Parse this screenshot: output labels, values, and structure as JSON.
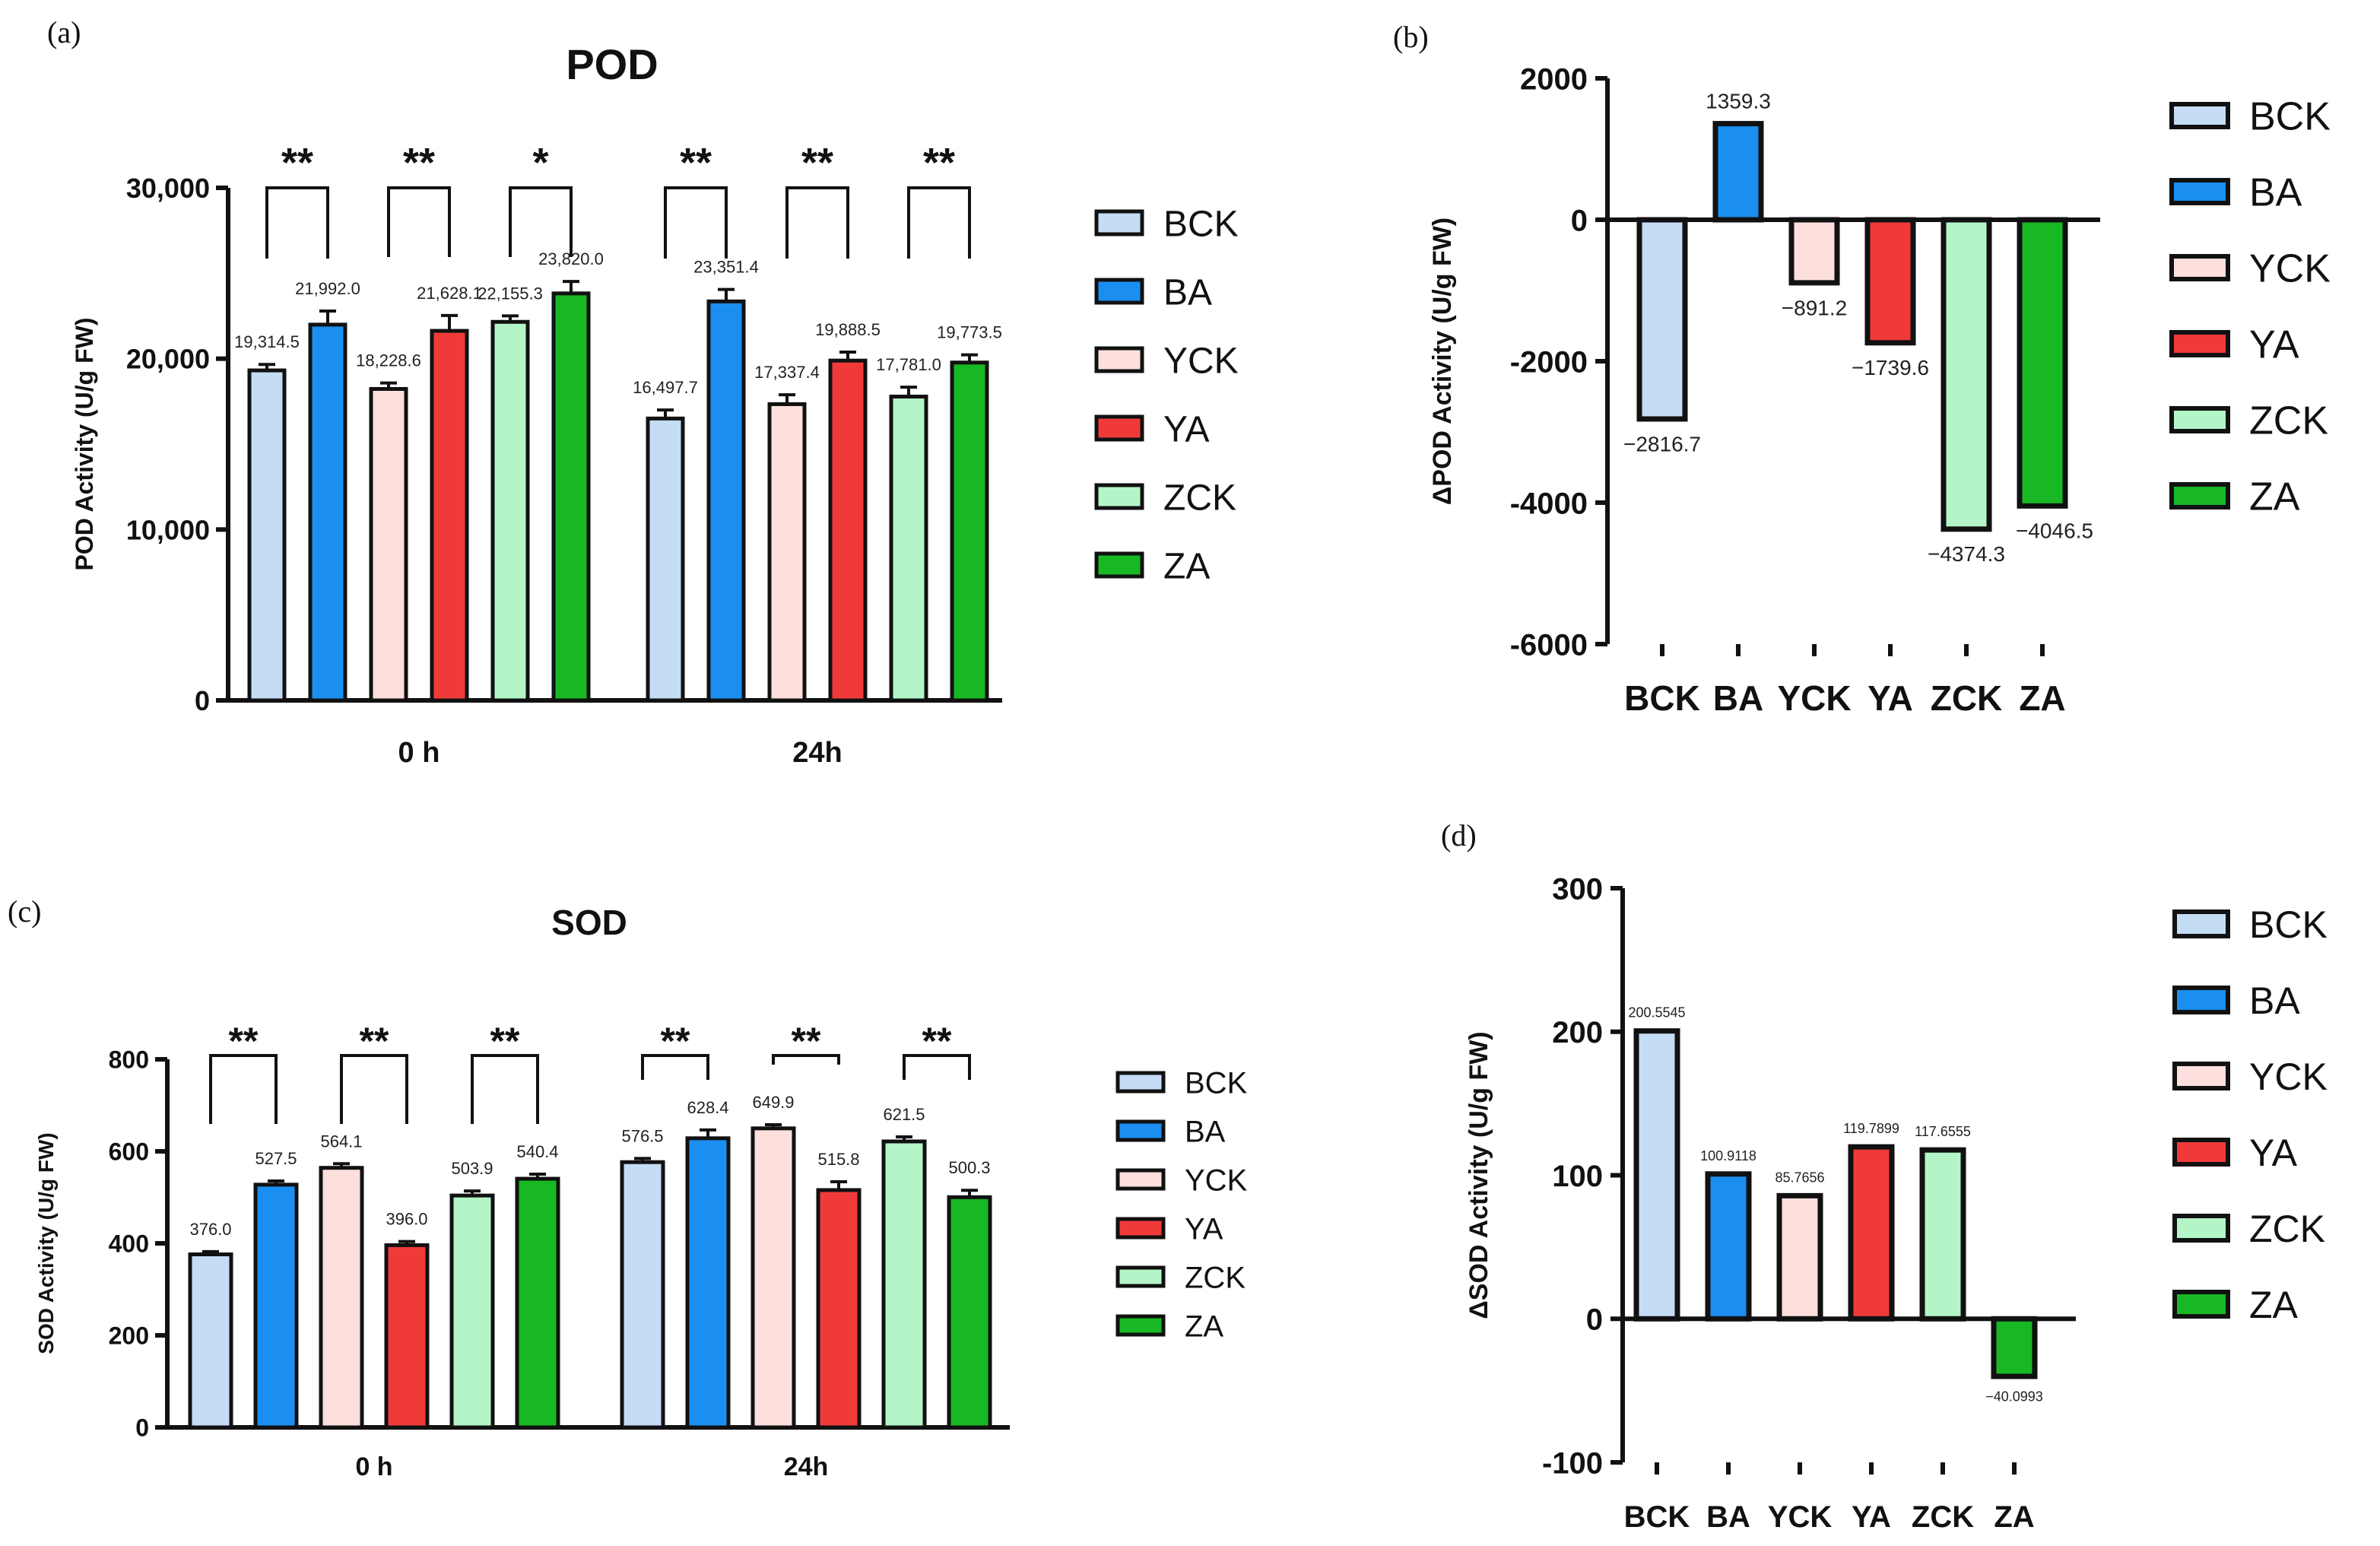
{
  "panels": {
    "a": "(a)",
    "b": "(b)",
    "c": "(c)",
    "d": "(d)"
  },
  "colors": {
    "BCK": "#c5dcf5",
    "BA": "#1a8ff0",
    "YCK": "#fde0dd",
    "YA": "#f03a3a",
    "ZCK": "#b4f5c8",
    "ZA": "#18b824"
  },
  "chart_data": [
    {
      "id": "a",
      "type": "bar",
      "title": "POD",
      "ylabel": "POD Activity (U/g FW)",
      "xlabel": "",
      "ylim": [
        0,
        30000
      ],
      "yticks": [
        0,
        10000,
        20000,
        30000
      ],
      "ytick_labels": [
        "0",
        "10,000",
        "20,000",
        "30,000"
      ],
      "groups": [
        "0 h",
        "24h"
      ],
      "series_names": [
        "BCK",
        "BA",
        "YCK",
        "YA",
        "ZCK",
        "ZA"
      ],
      "values": [
        [
          19314.5,
          21992.0,
          18228.6,
          21628.1,
          22155.3,
          23820.0
        ],
        [
          16497.7,
          23351.4,
          17337.4,
          19888.5,
          17781.0,
          19773.5
        ]
      ],
      "errors": [
        [
          350,
          800,
          350,
          900,
          350,
          700
        ],
        [
          500,
          700,
          550,
          500,
          550,
          450
        ]
      ],
      "value_labels": [
        [
          "19,314.5",
          "21,992.0",
          "18,228.6",
          "21,628.1",
          "22,155.3",
          "23,820.0"
        ],
        [
          "16,497.7",
          "23,351.4",
          "17,337.4",
          "19,888.5",
          "17,781.0",
          "19,773.5"
        ]
      ],
      "significance": [
        [
          "**",
          "**",
          "*"
        ],
        [
          "**",
          "**",
          "**"
        ]
      ],
      "legend": [
        "BCK",
        "BA",
        "YCK",
        "YA",
        "ZCK",
        "ZA"
      ]
    },
    {
      "id": "b",
      "type": "bar",
      "ylabel": "ΔPOD Activity (U/g FW)",
      "ylim": [
        -6000,
        2000
      ],
      "yticks": [
        -6000,
        -4000,
        -2000,
        0,
        2000
      ],
      "ytick_labels": [
        "-6000",
        "-4000",
        "-2000",
        "0",
        "2000"
      ],
      "categories": [
        "BCK",
        "BA",
        "YCK",
        "YA",
        "ZCK",
        "ZA"
      ],
      "values": [
        -2816.7,
        1359.3,
        -891.2,
        -1739.6,
        -4374.3,
        -4046.5
      ],
      "value_labels": [
        "−2816.7",
        "1359.3",
        "−891.2",
        "−1739.6",
        "−4374.3",
        "−4046.5"
      ],
      "legend": [
        "BCK",
        "BA",
        "YCK",
        "YA",
        "ZCK",
        "ZA"
      ]
    },
    {
      "id": "c",
      "type": "bar",
      "title": "SOD",
      "ylabel": "SOD Activity (U/g FW)",
      "ylim": [
        0,
        800
      ],
      "yticks": [
        0,
        200,
        400,
        600,
        800
      ],
      "ytick_labels": [
        "0",
        "200",
        "400",
        "600",
        "800"
      ],
      "groups": [
        "0 h",
        "24h"
      ],
      "series_names": [
        "BCK",
        "BA",
        "YCK",
        "YA",
        "ZCK",
        "ZA"
      ],
      "values": [
        [
          376.0,
          527.5,
          564.1,
          396.0,
          503.9,
          540.4
        ],
        [
          576.5,
          628.4,
          649.9,
          515.8,
          621.5,
          500.3
        ]
      ],
      "errors": [
        [
          6,
          8,
          9,
          8,
          10,
          10
        ],
        [
          8,
          18,
          8,
          18,
          10,
          15
        ]
      ],
      "value_labels": [
        [
          "376.0",
          "527.5",
          "564.1",
          "396.0",
          "503.9",
          "540.4"
        ],
        [
          "576.5",
          "628.4",
          "649.9",
          "515.8",
          "621.5",
          "500.3"
        ]
      ],
      "significance": [
        [
          "**",
          "**",
          "**"
        ],
        [
          "**",
          "**",
          "**"
        ]
      ],
      "legend": [
        "BCK",
        "BA",
        "YCK",
        "YA",
        "ZCK",
        "ZA"
      ]
    },
    {
      "id": "d",
      "type": "bar",
      "ylabel": "ΔSOD Activity (U/g FW)",
      "ylim": [
        -100,
        300
      ],
      "yticks": [
        -100,
        0,
        100,
        200,
        300
      ],
      "ytick_labels": [
        "-100",
        "0",
        "100",
        "200",
        "300"
      ],
      "categories": [
        "BCK",
        "BA",
        "YCK",
        "YA",
        "ZCK",
        "ZA"
      ],
      "values": [
        200.5545,
        100.9118,
        85.7656,
        119.7899,
        117.6555,
        -40.0993
      ],
      "value_labels": [
        "200.5545",
        "100.9118",
        "85.7656",
        "119.7899",
        "117.6555",
        "−40.0993"
      ],
      "legend": [
        "BCK",
        "BA",
        "YCK",
        "YA",
        "ZCK",
        "ZA"
      ]
    }
  ]
}
